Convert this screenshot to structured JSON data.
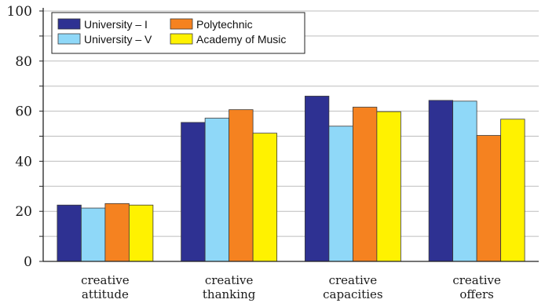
{
  "chart_data": {
    "type": "bar",
    "categories": [
      [
        "creative",
        "attitude"
      ],
      [
        "creative",
        "thanking"
      ],
      [
        "creative",
        "capacities"
      ],
      [
        "creative",
        "offers"
      ]
    ],
    "series": [
      {
        "name": "University – I",
        "color": "#2e3192",
        "values": [
          22.5,
          55.5,
          66,
          64.3
        ]
      },
      {
        "name": "University – V",
        "color": "#8fd8f8",
        "values": [
          21.3,
          57.2,
          54,
          64
        ]
      },
      {
        "name": "Polytechnic",
        "color": "#f58220",
        "values": [
          23.1,
          60.6,
          61.6,
          50.3
        ]
      },
      {
        "name": "Academy of Music",
        "color": "#fff200",
        "values": [
          22.5,
          51.2,
          59.8,
          56.8
        ]
      }
    ],
    "legend_order": [
      0,
      2,
      1,
      3
    ],
    "yticks": [
      0,
      20,
      40,
      60,
      80,
      100
    ],
    "ylim": [
      0,
      100
    ],
    "grid": true,
    "legend_position": "top-left"
  }
}
